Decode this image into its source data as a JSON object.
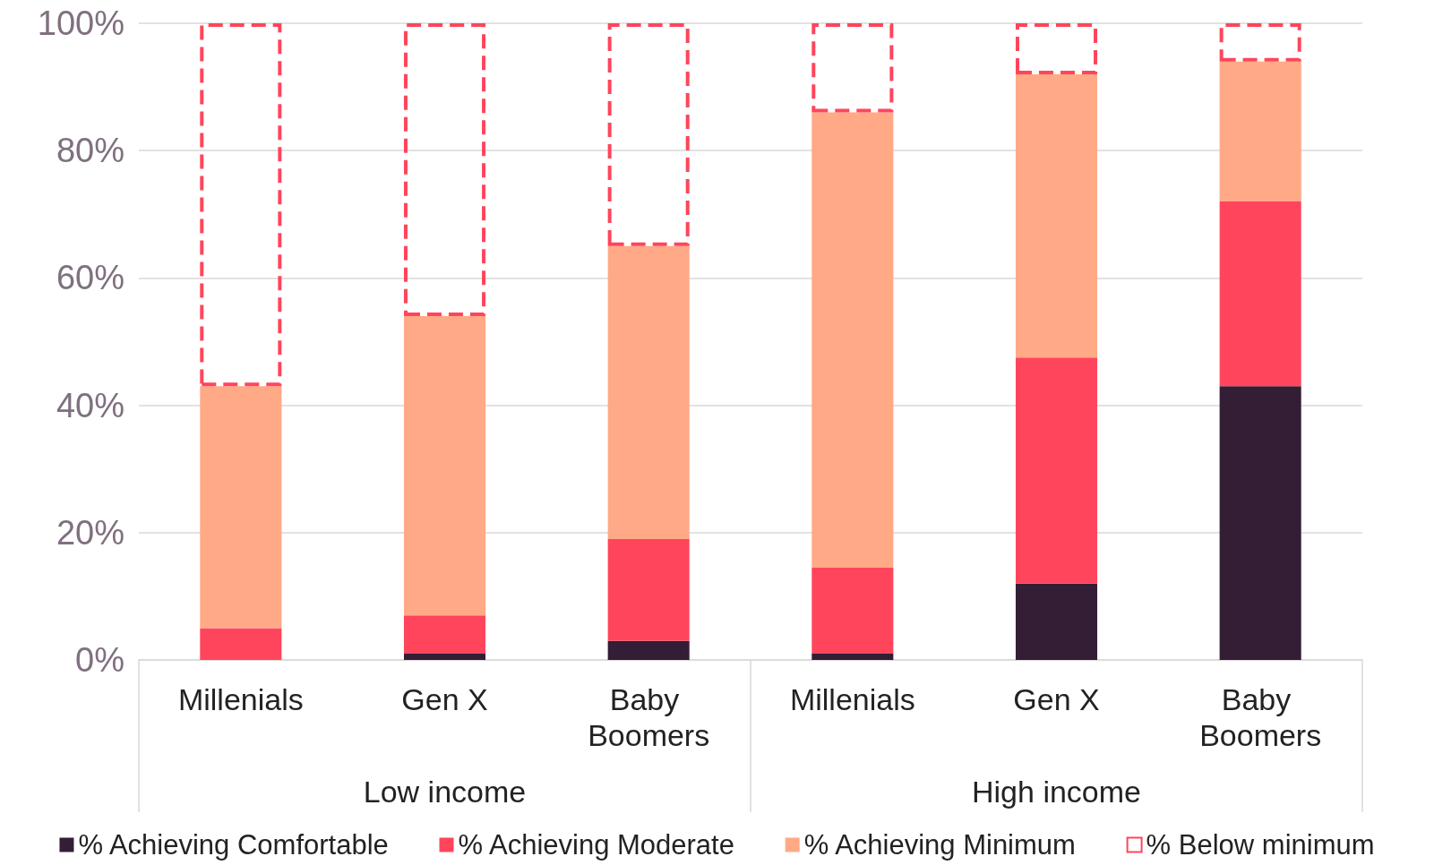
{
  "chart_data": {
    "type": "bar",
    "stacked": true,
    "categories": [
      "Millenials",
      "Gen X",
      "Baby Boomers",
      "Millenials",
      "Gen X",
      "Baby Boomers"
    ],
    "series": [
      {
        "name": "% Achieving Comfortable",
        "color": "#331e36",
        "values": [
          0,
          1,
          3,
          1,
          12,
          43
        ]
      },
      {
        "name": "% Achieving Moderate",
        "color": "#ff455c",
        "values": [
          5,
          6,
          16,
          13.5,
          35.5,
          29
        ]
      },
      {
        "name": "% Achieving Minimum",
        "color": "#ffa987",
        "values": [
          38,
          47,
          46,
          71.5,
          44.5,
          22
        ]
      },
      {
        "name": "% Below minimum",
        "color": "#ff455c",
        "line_style": "dashed",
        "values": [
          57,
          46,
          35,
          14,
          8,
          6
        ]
      }
    ],
    "ylim": [
      0,
      100
    ],
    "yticks": [
      {
        "value": 0,
        "label": "0%"
      },
      {
        "value": 20,
        "label": "20%"
      },
      {
        "value": 40,
        "label": "40%"
      },
      {
        "value": 60,
        "label": "60%"
      },
      {
        "value": 80,
        "label": "80%"
      },
      {
        "value": 100,
        "label": "100%"
      }
    ],
    "annotations": [
      "Low income",
      "High income"
    ],
    "grid": "y",
    "legend": "bottom"
  }
}
